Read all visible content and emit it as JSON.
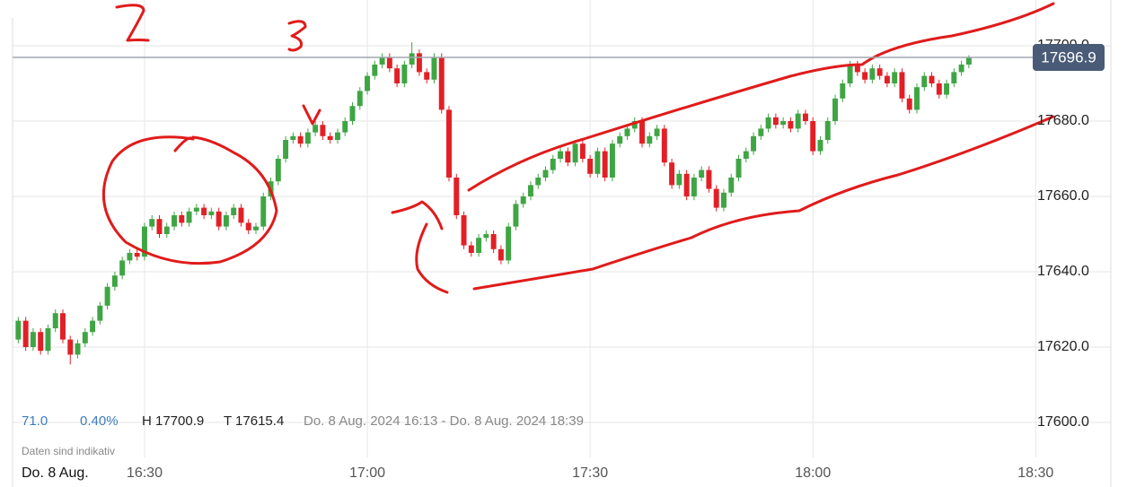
{
  "chart_data": {
    "type": "candlestick",
    "color_up": "#3fa544",
    "color_down": "#e21f26",
    "x": [
      "16:13",
      "16:14",
      "16:15",
      "16:16",
      "16:17",
      "16:18",
      "16:19",
      "16:20",
      "16:21",
      "16:22",
      "16:23",
      "16:24",
      "16:25",
      "16:26",
      "16:27",
      "16:28",
      "16:29",
      "16:30",
      "16:31",
      "16:32",
      "16:33",
      "16:34",
      "16:35",
      "16:36",
      "16:37",
      "16:38",
      "16:39",
      "16:40",
      "16:41",
      "16:42",
      "16:43",
      "16:44",
      "16:45",
      "16:46",
      "16:47",
      "16:48",
      "16:49",
      "16:50",
      "16:51",
      "16:52",
      "16:53",
      "16:54",
      "16:55",
      "16:56",
      "16:57",
      "16:58",
      "16:59",
      "17:00",
      "17:01",
      "17:02",
      "17:03",
      "17:04",
      "17:05",
      "17:06",
      "17:07",
      "17:08",
      "17:09",
      "17:10",
      "17:11",
      "17:12",
      "17:13",
      "17:14",
      "17:15",
      "17:16",
      "17:17",
      "17:18",
      "17:19",
      "17:20",
      "17:21",
      "17:22",
      "17:23",
      "17:24",
      "17:25",
      "17:26",
      "17:27",
      "17:28",
      "17:29",
      "17:30",
      "17:31",
      "17:32",
      "17:33",
      "17:34",
      "17:35",
      "17:36",
      "17:37",
      "17:38",
      "17:39",
      "17:40",
      "17:41",
      "17:42",
      "17:43",
      "17:44",
      "17:45",
      "17:46",
      "17:47",
      "17:48",
      "17:49",
      "17:50",
      "17:51",
      "17:52",
      "17:53",
      "17:54",
      "17:55",
      "17:56",
      "17:57",
      "17:58",
      "17:59",
      "18:00",
      "18:01",
      "18:02",
      "18:03",
      "18:04",
      "18:05",
      "18:06",
      "18:07",
      "18:08",
      "18:09",
      "18:10",
      "18:11",
      "18:12",
      "18:13",
      "18:14",
      "18:15",
      "18:16",
      "18:17",
      "18:18",
      "18:19",
      "18:20",
      "18:21"
    ],
    "open": [
      17622,
      17627,
      17620,
      17624,
      17619,
      17625,
      17629,
      17622,
      17618,
      17621,
      17624,
      17627,
      17631,
      17636,
      17639,
      17643,
      17645,
      17644,
      17652,
      17654,
      17650,
      17652,
      17655,
      17653,
      17656,
      17657,
      17655,
      17656,
      17652,
      17655,
      17657,
      17653,
      17651,
      17652,
      17660,
      17664,
      17670,
      17675,
      17676,
      17674,
      17677,
      17679,
      17676,
      17675,
      17677,
      17680,
      17684,
      17688,
      17692,
      17695,
      17697,
      17694,
      17690,
      17695,
      17698,
      17693,
      17691,
      17697,
      17683,
      17665,
      17655,
      17647,
      17645,
      17649,
      17650,
      17646,
      17643,
      17652,
      17658,
      17660,
      17663,
      17665,
      17667,
      17670,
      17672,
      17669,
      17674,
      17670,
      17666,
      17672,
      17665,
      17674,
      17676,
      17678,
      17680,
      17674,
      17676,
      17678,
      17669,
      17663,
      17666,
      17660,
      17665,
      17667,
      17662,
      17657,
      17661,
      17665,
      17670,
      17672,
      17676,
      17678,
      17681,
      17679,
      17680,
      17678,
      17682,
      17680,
      17672,
      17675,
      17680,
      17686,
      17690,
      17695,
      17693,
      17691,
      17694,
      17692,
      17690,
      17693,
      17686,
      17683,
      17689,
      17692,
      17690,
      17687,
      17690,
      17693,
      17695
    ],
    "high": [
      17628,
      17628,
      17625,
      17625,
      17626,
      17630,
      17630,
      17623,
      17622,
      17625,
      17628,
      17632,
      17637,
      17640,
      17644,
      17646,
      17646,
      17653,
      17655,
      17655,
      17653,
      17656,
      17656,
      17657,
      17658,
      17658,
      17657,
      17657,
      17656,
      17658,
      17658,
      17654,
      17653,
      17661,
      17665,
      17671,
      17676,
      17677,
      17677,
      17678,
      17680,
      17680,
      17677,
      17678,
      17681,
      17685,
      17689,
      17693,
      17696,
      17698,
      17698,
      17695,
      17696,
      17700.9,
      17699,
      17694,
      17698,
      17698,
      17684,
      17666,
      17656,
      17648,
      17650,
      17651,
      17651,
      17647,
      17653,
      17659,
      17661,
      17664,
      17666,
      17668,
      17671,
      17673,
      17673,
      17675,
      17675,
      17671,
      17673,
      17673,
      17675,
      17677,
      17679,
      17681,
      17681,
      17677,
      17679,
      17679,
      17670,
      17667,
      17667,
      17666,
      17668,
      17668,
      17663,
      17662,
      17666,
      17671,
      17673,
      17677,
      17679,
      17682,
      17682,
      17681,
      17681,
      17683,
      17683,
      17681,
      17676,
      17681,
      17687,
      17691,
      17696,
      17696,
      17694,
      17695,
      17695,
      17693,
      17694,
      17694,
      17687,
      17690,
      17693,
      17693,
      17691,
      17691,
      17694,
      17696,
      17697.5
    ],
    "low": [
      17621,
      17619,
      17619,
      17618,
      17618,
      17624,
      17621,
      17615.4,
      17617,
      17620,
      17623,
      17626,
      17630,
      17635,
      17638,
      17642,
      17643,
      17643,
      17651,
      17649,
      17649,
      17651,
      17652,
      17652,
      17655,
      17654,
      17654,
      17651,
      17651,
      17654,
      17652,
      17650,
      17650,
      17651,
      17659,
      17663,
      17669,
      17674,
      17673,
      17673,
      17676,
      17675,
      17674,
      17674,
      17676,
      17679,
      17683,
      17687,
      17691,
      17694,
      17693,
      17689,
      17689,
      17694,
      17692,
      17690,
      17690,
      17682,
      17664,
      17654,
      17646,
      17644,
      17644,
      17648,
      17645,
      17642,
      17642,
      17651,
      17657,
      17659,
      17662,
      17664,
      17666,
      17669,
      17668,
      17668,
      17669,
      17665,
      17665,
      17664,
      17664,
      17673,
      17675,
      17677,
      17673,
      17673,
      17675,
      17668,
      17662,
      17662,
      17659,
      17659,
      17664,
      17661,
      17656,
      17656,
      17660,
      17664,
      17669,
      17671,
      17675,
      17677,
      17678,
      17678,
      17677,
      17677,
      17679,
      17671,
      17671,
      17674,
      17679,
      17685,
      17689,
      17692,
      17690,
      17690,
      17691,
      17689,
      17689,
      17685,
      17682,
      17682,
      17688,
      17689,
      17686,
      17686,
      17689,
      17692,
      17694
    ],
    "close": [
      17627,
      17620,
      17624,
      17619,
      17625,
      17629,
      17622,
      17618,
      17621,
      17624,
      17627,
      17631,
      17636,
      17639,
      17643,
      17645,
      17644,
      17652,
      17654,
      17650,
      17652,
      17655,
      17653,
      17656,
      17657,
      17655,
      17656,
      17652,
      17655,
      17657,
      17653,
      17651,
      17652,
      17660,
      17664,
      17670,
      17675,
      17676,
      17674,
      17677,
      17679,
      17676,
      17675,
      17677,
      17680,
      17684,
      17688,
      17692,
      17695,
      17697,
      17694,
      17690,
      17695,
      17698,
      17693,
      17691,
      17697,
      17683,
      17665,
      17655,
      17647,
      17645,
      17649,
      17650,
      17646,
      17643,
      17652,
      17658,
      17660,
      17663,
      17665,
      17667,
      17670,
      17672,
      17669,
      17674,
      17670,
      17666,
      17672,
      17665,
      17674,
      17676,
      17678,
      17680,
      17674,
      17676,
      17678,
      17669,
      17663,
      17666,
      17660,
      17665,
      17667,
      17662,
      17657,
      17661,
      17665,
      17670,
      17672,
      17676,
      17678,
      17681,
      17679,
      17680,
      17678,
      17682,
      17680,
      17672,
      17675,
      17680,
      17686,
      17690,
      17695,
      17693,
      17691,
      17694,
      17692,
      17690,
      17693,
      17686,
      17683,
      17689,
      17692,
      17690,
      17687,
      17690,
      17693,
      17695,
      17696.9
    ],
    "xlim": [
      "16:12",
      "18:40"
    ],
    "xticks": [
      "16:30",
      "17:00",
      "17:30",
      "18:00",
      "18:30"
    ],
    "ylim": [
      17590,
      17712
    ],
    "yticks": [
      {
        "value": 17600,
        "label": "17600.0"
      },
      {
        "value": 17620,
        "label": "17620.0"
      },
      {
        "value": 17640,
        "label": "17640.0"
      },
      {
        "value": 17660,
        "label": "17660.0"
      },
      {
        "value": 17680,
        "label": "17680.0"
      },
      {
        "value": 17700,
        "label": "17700.0"
      }
    ],
    "last_price": {
      "value": 17696.9,
      "label": "17696.9"
    },
    "stats": [
      "71.0",
      "0.40%",
      "H 17700.9",
      "T 17615.4"
    ],
    "range": "Do. 8 Aug. 2024 16:13 - Do. 8 Aug. 2024 18:39",
    "note": "Daten sind indikativ",
    "date_label": "Do. 8 Aug.",
    "grid": true
  }
}
